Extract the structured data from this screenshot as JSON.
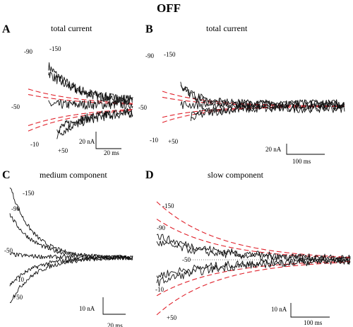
{
  "figure": {
    "title": "OFF",
    "trace_color": "#111111",
    "fit_color": "#e0202a"
  },
  "chart_data": [
    {
      "type": "line",
      "panel_label": "A",
      "title": "total current",
      "voltage_labels": [
        "-90",
        "-150",
        "-50",
        "-10",
        "+50"
      ],
      "scale_bar": {
        "current": "20 nA",
        "time": "20 ms"
      },
      "baseline_label": "-50",
      "series": [
        {
          "voltage_label": "-150",
          "start": 1.0,
          "end": 0.06,
          "tau": 0.27
        },
        {
          "voltage_label": "-90",
          "start": 0.78,
          "end": 0.05,
          "tau": 0.3
        },
        {
          "voltage_label": "-50",
          "start": 0.02,
          "end": 0.02,
          "tau": 0.3
        },
        {
          "voltage_label": "-10",
          "start": -0.62,
          "end": -0.05,
          "tau": 0.33
        },
        {
          "voltage_label": "+50",
          "start": -0.85,
          "end": -0.06,
          "tau": 0.3
        }
      ],
      "fits": [
        {
          "start": 0.22,
          "tau": 0.55
        },
        {
          "start": 0.15,
          "tau": 0.55
        },
        {
          "start": -0.25,
          "tau": 0.55
        },
        {
          "start": -0.32,
          "tau": 0.55
        }
      ]
    },
    {
      "type": "line",
      "panel_label": "B",
      "title": "total current",
      "voltage_labels": [
        "-90",
        "-150",
        "-50",
        "-10",
        "+50"
      ],
      "scale_bar": {
        "current": "20 nA",
        "time": "100 ms"
      },
      "baseline_label": "-50",
      "series": [
        {
          "voltage_label": "-150",
          "start": 1.0,
          "end": 0.03,
          "tau": 0.08
        },
        {
          "voltage_label": "-90",
          "start": 0.85,
          "end": 0.03,
          "tau": 0.09
        },
        {
          "voltage_label": "-50",
          "start": 0.02,
          "end": 0.02,
          "tau": 0.1
        },
        {
          "voltage_label": "-10",
          "start": -0.6,
          "end": -0.02,
          "tau": 0.1
        },
        {
          "voltage_label": "+50",
          "start": -0.78,
          "end": -0.03,
          "tau": 0.1
        }
      ],
      "fits": [
        {
          "start": 0.2,
          "tau": 0.25
        },
        {
          "start": 0.12,
          "tau": 0.25
        },
        {
          "start": -0.15,
          "tau": 0.25
        },
        {
          "start": -0.22,
          "tau": 0.25
        }
      ]
    },
    {
      "type": "line",
      "panel_label": "C",
      "title": "medium component",
      "voltage_labels": [
        "-150",
        "-90",
        "-50",
        "-10",
        "+50"
      ],
      "scale_bar": {
        "current": "10 nA",
        "time": "20 ms"
      },
      "baseline_label": "-50",
      "series": [
        {
          "voltage_label": "-150",
          "start": 1.0,
          "end": 0.0,
          "tau": 0.18
        },
        {
          "voltage_label": "-90",
          "start": 0.6,
          "end": 0.0,
          "tau": 0.2
        },
        {
          "voltage_label": "-50",
          "start": 0.05,
          "end": 0.0,
          "tau": 0.2
        },
        {
          "voltage_label": "-10",
          "start": -0.38,
          "end": 0.0,
          "tau": 0.2
        },
        {
          "voltage_label": "+50",
          "start": -0.62,
          "end": 0.0,
          "tau": 0.2
        }
      ],
      "fits": []
    },
    {
      "type": "line",
      "panel_label": "D",
      "title": "slow component",
      "voltage_labels": [
        "-150",
        "-90",
        "-50",
        "-10",
        "+50"
      ],
      "scale_bar": {
        "current": "10 nA",
        "time": "100 ms"
      },
      "baseline_label": "-50",
      "series": [
        {
          "voltage_label": "-150",
          "start": 0.42,
          "end": 0.0,
          "tau": 0.32
        },
        {
          "voltage_label": "-90",
          "start": 0.3,
          "end": 0.0,
          "tau": 0.32
        },
        {
          "voltage_label": "-10",
          "start": -0.28,
          "end": 0.0,
          "tau": 0.32
        },
        {
          "voltage_label": "+50",
          "start": -0.4,
          "end": 0.0,
          "tau": 0.32
        }
      ],
      "fits": [
        {
          "start": 1.0,
          "tau": 0.32
        },
        {
          "start": 0.7,
          "tau": 0.32
        },
        {
          "start": -0.62,
          "tau": 0.32
        },
        {
          "start": -0.95,
          "tau": 0.32
        }
      ]
    }
  ]
}
